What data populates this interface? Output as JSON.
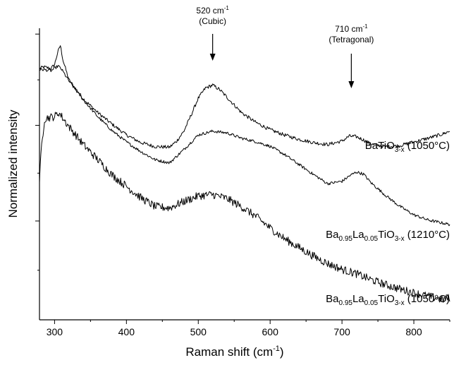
{
  "chart_data": {
    "type": "line",
    "xlabel": "Raman shift (cm",
    "xlabel_sup": "-1",
    "xlabel_tail": ")",
    "ylabel": "Normalized intensity",
    "xlim": [
      279,
      850
    ],
    "ylim": [
      0,
      1
    ],
    "x_ticks": [
      300,
      400,
      500,
      600,
      700,
      800
    ],
    "x_tick_labels": [
      "300",
      "400",
      "500",
      "600",
      "700",
      "800"
    ],
    "y_ticks_unlabeled": true,
    "grid": false,
    "annotations": [
      {
        "main": "520 cm",
        "sup": "-1",
        "second_line": "(Cubic)",
        "x": 520
      },
      {
        "main": "710 cm",
        "sup": "-1",
        "second_line": "(Tetragonal)",
        "x": 713
      }
    ],
    "series": [
      {
        "name_parts": [
          [
            "BaTiO",
            ""
          ],
          [
            "3-x",
            "sub"
          ],
          [
            " (1050°C)",
            ""
          ]
        ],
        "x": [
          279,
          285,
          295,
          300,
          304,
          308,
          312,
          320,
          340,
          360,
          380,
          400,
          420,
          440,
          460,
          470,
          480,
          490,
          500,
          510,
          520,
          530,
          540,
          560,
          580,
          600,
          620,
          640,
          660,
          680,
          700,
          710,
          720,
          730,
          740,
          760,
          780,
          800,
          820,
          840,
          850
        ],
        "y": [
          0.862,
          0.867,
          0.862,
          0.875,
          0.914,
          0.941,
          0.888,
          0.823,
          0.758,
          0.711,
          0.671,
          0.634,
          0.608,
          0.594,
          0.592,
          0.613,
          0.647,
          0.702,
          0.76,
          0.795,
          0.805,
          0.789,
          0.763,
          0.711,
          0.677,
          0.652,
          0.634,
          0.619,
          0.608,
          0.601,
          0.613,
          0.63,
          0.628,
          0.617,
          0.603,
          0.594,
          0.597,
          0.61,
          0.623,
          0.637,
          0.647
        ]
      },
      {
        "name_parts": [
          [
            "Ba",
            ""
          ],
          [
            "0.95",
            "sub"
          ],
          [
            "La",
            ""
          ],
          [
            "0.05",
            "sub"
          ],
          [
            "TiO",
            ""
          ],
          [
            "3-x",
            "sub"
          ],
          [
            " (1210°C)",
            ""
          ]
        ],
        "x": [
          279,
          285,
          295,
          300,
          305,
          310,
          320,
          340,
          360,
          380,
          400,
          420,
          440,
          460,
          480,
          500,
          520,
          540,
          560,
          580,
          600,
          620,
          640,
          660,
          680,
          700,
          710,
          720,
          730,
          740,
          760,
          780,
          800,
          820,
          840,
          850
        ],
        "y": [
          0.858,
          0.858,
          0.854,
          0.862,
          0.871,
          0.858,
          0.819,
          0.754,
          0.697,
          0.649,
          0.61,
          0.577,
          0.549,
          0.538,
          0.584,
          0.634,
          0.647,
          0.641,
          0.623,
          0.611,
          0.595,
          0.567,
          0.533,
          0.499,
          0.467,
          0.475,
          0.493,
          0.507,
          0.5,
          0.471,
          0.428,
          0.39,
          0.36,
          0.342,
          0.332,
          0.327
        ]
      },
      {
        "name_parts": [
          [
            "Ba",
            ""
          ],
          [
            "0.95",
            "sub"
          ],
          [
            "La",
            ""
          ],
          [
            "0.05",
            "sub"
          ],
          [
            "TiO",
            ""
          ],
          [
            "3-x",
            "sub"
          ],
          [
            " (1050°C)",
            ""
          ]
        ],
        "x": [
          279,
          282,
          286,
          290,
          300,
          306,
          310,
          320,
          340,
          360,
          380,
          400,
          420,
          440,
          460,
          480,
          500,
          520,
          540,
          560,
          580,
          600,
          620,
          640,
          660,
          680,
          700,
          720,
          740,
          760,
          780,
          800,
          820,
          840,
          850
        ],
        "y": [
          0.478,
          0.597,
          0.689,
          0.693,
          0.697,
          0.711,
          0.697,
          0.663,
          0.601,
          0.55,
          0.497,
          0.458,
          0.419,
          0.388,
          0.384,
          0.406,
          0.425,
          0.43,
          0.416,
          0.388,
          0.355,
          0.315,
          0.278,
          0.248,
          0.219,
          0.193,
          0.173,
          0.158,
          0.138,
          0.121,
          0.106,
          0.093,
          0.081,
          0.069,
          0.076
        ]
      }
    ]
  }
}
